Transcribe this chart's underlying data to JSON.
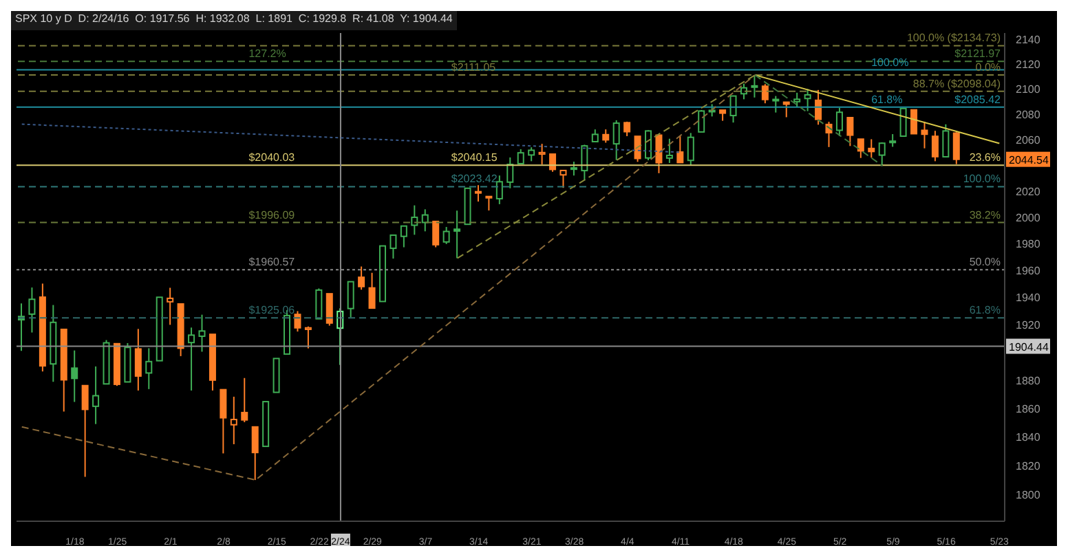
{
  "chart_data": {
    "type": "candlestick",
    "title": "SPX 10 y D  D: 2/24/16  O: 1917.56  H: 1932.08  L: 1891  C: 1929.8  R: 41.08  Y: 1904.44",
    "categories": [
      null,
      null,
      null,
      null,
      null,
      "1/18",
      null,
      null,
      null,
      "1/25",
      null,
      null,
      null,
      null,
      "2/1",
      null,
      null,
      null,
      null,
      "2/8",
      null,
      null,
      null,
      null,
      "2/15",
      null,
      null,
      null,
      "2/22",
      null,
      "2/24",
      null,
      null,
      "2/29",
      null,
      null,
      null,
      null,
      "3/7",
      null,
      null,
      null,
      null,
      "3/14",
      null,
      null,
      null,
      null,
      "3/21",
      null,
      null,
      null,
      "3/28",
      null,
      null,
      null,
      null,
      "4/4",
      null,
      null,
      null,
      null,
      "4/11",
      null,
      null,
      null,
      null,
      "4/18",
      null,
      null,
      null,
      null,
      "4/25",
      null,
      null,
      null,
      null,
      "5/2",
      null,
      null,
      null,
      null,
      "5/9",
      null,
      null,
      null,
      null,
      "5/16",
      null,
      null,
      null,
      null,
      "5/23"
    ],
    "ohlc": [
      [
        1926.1,
        1935.6,
        1901.1,
        1923.7
      ],
      [
        1927.8,
        1947.4,
        1914.4,
        1938.7
      ],
      [
        1940.3,
        1950.3,
        1886.3,
        1890.3
      ],
      [
        1891.7,
        1934.5,
        1878.9,
        1921.8
      ],
      [
        1916.7,
        1916.7,
        1857.8,
        1880.3
      ],
      [
        1888.7,
        1901.4,
        1864.6,
        1881.3
      ],
      [
        1876.2,
        1876.2,
        1812.3,
        1859.3
      ],
      [
        1861.5,
        1889.9,
        1849,
        1869
      ],
      [
        1877.4,
        1908.9,
        1877.4,
        1906.9
      ],
      [
        1906.3,
        1906.3,
        1876,
        1877.1
      ],
      [
        1878.8,
        1906.7,
        1878.8,
        1903.6
      ],
      [
        1902.5,
        1917,
        1872.7,
        1883
      ],
      [
        1885.2,
        1903,
        1873.7,
        1893.4
      ],
      [
        1894,
        1940.2,
        1894,
        1940.2
      ],
      [
        1936.9,
        1947.2,
        1920,
        1939.4
      ],
      [
        1935.3,
        1935.3,
        1897.3,
        1903
      ],
      [
        1907.1,
        1918,
        1872.7,
        1912.5
      ],
      [
        1911.7,
        1927.4,
        1900.5,
        1915.5
      ],
      [
        1913.1,
        1913.1,
        1872.7,
        1880.1
      ],
      [
        1873.3,
        1873.3,
        1828.5,
        1853.4
      ],
      [
        1848.5,
        1868.3,
        1834.9,
        1852.2
      ],
      [
        1857.1,
        1881.6,
        1850.3,
        1851.9
      ],
      [
        1847,
        1847,
        1810.1,
        1829.1
      ],
      [
        1833.4,
        1864.8,
        1833.4,
        1864.8
      ],
      [
        1871.4,
        1895.8,
        1871.4,
        1895.6
      ],
      [
        1898.8,
        1930.7,
        1898.8,
        1926.8
      ],
      [
        1927.6,
        1930,
        1915.1,
        1917.8
      ],
      [
        1916.7,
        1918.8,
        1902.9,
        1917.8
      ],
      [
        1924.4,
        1946.7,
        1924.4,
        1945.5
      ],
      [
        1942.8,
        1942.8,
        1919.4,
        1921.3
      ],
      [
        1917.56,
        1932.08,
        1891,
        1929.8
      ],
      [
        1931.9,
        1951.8,
        1925.4,
        1951.7
      ],
      [
        1955,
        1963,
        1945.8,
        1948.1
      ],
      [
        1947.1,
        1958.3,
        1931.8,
        1932.2
      ],
      [
        1937.1,
        1978.4,
        1937.1,
        1978.4
      ],
      [
        1976.6,
        1986.5,
        1968.9,
        1986.5
      ],
      [
        1985.6,
        1993.7,
        1977.4,
        1993.4
      ],
      [
        1994,
        2009.1,
        1986.8,
        2000
      ],
      [
        1996.1,
        2006.1,
        1989.4,
        2001.8
      ],
      [
        1996.9,
        1996.9,
        1977.4,
        1979.3
      ],
      [
        1981.4,
        1992.7,
        1979.8,
        1989.3
      ],
      [
        1991,
        2005.1,
        1969.2,
        1989.6
      ],
      [
        1994.7,
        2022.4,
        1994.7,
        2022.2
      ],
      [
        2019.3,
        2024.6,
        2012,
        2019.6
      ],
      [
        2015.3,
        2015.9,
        2005.2,
        2015.9
      ],
      [
        2014.2,
        2032,
        2010,
        2027.2
      ],
      [
        2026.9,
        2046,
        2022.2,
        2040.6
      ],
      [
        2041.2,
        2052.4,
        2041.2,
        2049.6
      ],
      [
        2047.9,
        2053.9,
        2043.1,
        2051.6
      ],
      [
        2048.6,
        2056.6,
        2040.6,
        2049.8
      ],
      [
        2048.6,
        2048.6,
        2034.9,
        2036.7
      ],
      [
        2032.5,
        2036,
        2022.5,
        2035.9
      ],
      [
        2037.9,
        2042.7,
        2032,
        2037.1
      ],
      [
        2035.8,
        2055.9,
        2028.3,
        2055
      ],
      [
        2058.3,
        2067.9,
        2058.3,
        2064
      ],
      [
        2063.8,
        2067.9,
        2057.5,
        2059.7
      ],
      [
        2056.6,
        2075.1,
        2044,
        2072.8
      ],
      [
        2073.2,
        2074,
        2062.6,
        2066.1
      ],
      [
        2062.5,
        2062.5,
        2042.6,
        2045.2
      ],
      [
        2045.6,
        2067.3,
        2043.8,
        2066.7
      ],
      [
        2063.4,
        2063.4,
        2033.8,
        2041.9
      ],
      [
        2045.5,
        2060.6,
        2041.7,
        2047.6
      ],
      [
        2050.2,
        2062.9,
        2041.9,
        2042
      ],
      [
        2043.7,
        2065.1,
        2039.7,
        2061.7
      ],
      [
        2065.9,
        2083.2,
        2065.9,
        2082.4
      ],
      [
        2082.9,
        2087.8,
        2078.1,
        2082.8
      ],
      [
        2083.1,
        2083.2,
        2074.7,
        2080.7
      ],
      [
        2078.8,
        2094.7,
        2073.3,
        2094.3
      ],
      [
        2096.1,
        2104.1,
        2091.7,
        2100.8
      ],
      [
        2101.5,
        2111.1,
        2093.1,
        2102.4
      ],
      [
        2102.1,
        2103.8,
        2088.5,
        2091.5
      ],
      [
        2091.5,
        2094.3,
        2081.2,
        2091.6
      ],
      [
        2089.4,
        2089.4,
        2077.5,
        2087.8
      ],
      [
        2089.8,
        2096.9,
        2085.8,
        2091.7
      ],
      [
        2092.3,
        2099.9,
        2082.3,
        2095.2
      ],
      [
        2090.9,
        2099.1,
        2071.6,
        2075.8
      ],
      [
        2071.8,
        2073.9,
        2054.1,
        2065.3
      ],
      [
        2067.2,
        2084.9,
        2062.6,
        2081.4
      ],
      [
        2077.2,
        2077.2,
        2054.9,
        2063.4
      ],
      [
        2060.3,
        2060.3,
        2045.6,
        2051.1
      ],
      [
        2053,
        2060.2,
        2045.8,
        2050.6
      ],
      [
        2047.8,
        2057.7,
        2039.5,
        2057.1
      ],
      [
        2057.6,
        2064.2,
        2054.3,
        2058.7
      ],
      [
        2062.6,
        2084.9,
        2062.6,
        2084.4
      ],
      [
        2083.3,
        2083.3,
        2064.5,
        2064.5
      ],
      [
        2067.2,
        2074,
        2053.1,
        2064.1
      ],
      [
        2062.5,
        2066.8,
        2043.1,
        2046.6
      ],
      [
        2046.5,
        2071.9,
        2046.5,
        2066.7
      ],
      [
        2065,
        2065.7,
        2040.8,
        2044.54
      ],
      null,
      null,
      null,
      null
    ],
    "colors": [
      "#3fae55",
      "#3fae55",
      "#ff7f27",
      "#3fae55",
      "#ff7f27",
      "#3fae55",
      "#ff7f27",
      "#3fae55",
      "#3fae55",
      "#ff7f27",
      "#3fae55",
      "#ff7f27",
      "#3fae55",
      "#3fae55",
      "#ff7f27",
      "#ff7f27",
      "#3fae55",
      "#3fae55",
      "#ff7f27",
      "#ff7f27",
      "#ff7f27",
      "#ff7f27",
      "#ff7f27",
      "#3fae55",
      "#3fae55",
      "#3fae55",
      "#ff7f27",
      "#ff7f27",
      "#3fae55",
      "#ff7f27",
      "#6dff8f",
      "#3fae55",
      "#ff7f27",
      "#ff7f27",
      "#3fae55",
      "#3fae55",
      "#3fae55",
      "#3fae55",
      "#3fae55",
      "#ff7f27",
      "#3fae55",
      "#3fae55",
      "#3fae55",
      "#ff7f27",
      "#ff7f27",
      "#3fae55",
      "#3fae55",
      "#3fae55",
      "#3fae55",
      "#ff7f27",
      "#ff7f27",
      "#ff7f27",
      "#3fae55",
      "#3fae55",
      "#3fae55",
      "#ff7f27",
      "#3fae55",
      "#ff7f27",
      "#ff7f27",
      "#3fae55",
      "#ff7f27",
      "#3fae55",
      "#ff7f27",
      "#3fae55",
      "#3fae55",
      "#3fae55",
      "#ff7f27",
      "#3fae55",
      "#3fae55",
      "#3fae55",
      "#ff7f27",
      "#3fae55",
      "#ff7f27",
      "#3fae55",
      "#3fae55",
      "#ff7f27",
      "#ff7f27",
      "#3fae55",
      "#ff7f27",
      "#ff7f27",
      "#ff7f27",
      "#3fae55",
      "#3fae55",
      "#3fae55",
      "#ff7f27",
      "#ff7f27",
      "#ff7f27",
      "#3fae55",
      "#ff7f27",
      null,
      null,
      null,
      null
    ],
    "series": [
      {
        "type": "line",
        "color": "#d8c84a",
        "line_style": "solid",
        "values": [
          null,
          null,
          null,
          null,
          null,
          null,
          null,
          null,
          null,
          null,
          null,
          null,
          null,
          null,
          null,
          null,
          null,
          null,
          null,
          null,
          null,
          null,
          null,
          null,
          null,
          null,
          null,
          null,
          null,
          null,
          null,
          null,
          null,
          null,
          null,
          null,
          null,
          null,
          null,
          null,
          null,
          null,
          null,
          null,
          null,
          null,
          null,
          null,
          null,
          null,
          null,
          null,
          null,
          null,
          null,
          null,
          null,
          null,
          null,
          null,
          null,
          null,
          null,
          null,
          null,
          null,
          null,
          null,
          null,
          2111.05,
          null,
          null,
          null,
          null,
          null,
          null,
          null,
          null,
          null,
          null,
          null,
          null,
          null,
          null,
          null,
          null,
          null,
          null,
          null,
          null,
          null,
          null,
          2057
        ]
      },
      {
        "type": "line",
        "color": "#8a6a3a",
        "line_style": "dashed",
        "values": [
          1847,
          null,
          null,
          null,
          null,
          null,
          null,
          null,
          null,
          null,
          null,
          null,
          null,
          null,
          null,
          null,
          null,
          null,
          null,
          null,
          null,
          null,
          1810.1,
          null,
          null,
          null,
          null,
          null,
          null,
          null,
          null,
          null,
          null,
          null,
          null,
          null,
          null,
          null,
          null,
          null,
          null,
          null,
          null,
          null,
          null,
          null,
          null,
          null,
          null,
          null,
          null,
          null,
          null,
          null,
          null,
          null,
          null,
          null,
          null,
          null,
          null,
          null,
          null,
          null,
          null,
          null,
          null,
          null,
          null,
          2111.05,
          null,
          null,
          null,
          null,
          null,
          null,
          null,
          null,
          null,
          null,
          null,
          null,
          null,
          null,
          null,
          null,
          null,
          null,
          null,
          null,
          null,
          null,
          null
        ]
      },
      {
        "type": "line",
        "color": "#8a8a3a",
        "line_style": "dashed",
        "values": [
          null,
          null,
          null,
          null,
          null,
          null,
          null,
          null,
          null,
          null,
          null,
          null,
          null,
          null,
          null,
          null,
          null,
          null,
          null,
          null,
          null,
          null,
          null,
          null,
          null,
          null,
          null,
          null,
          null,
          null,
          null,
          null,
          null,
          null,
          null,
          null,
          null,
          null,
          null,
          null,
          null,
          1969.2,
          null,
          null,
          null,
          null,
          null,
          null,
          null,
          null,
          null,
          null,
          null,
          null,
          null,
          null,
          null,
          null,
          null,
          null,
          null,
          null,
          null,
          null,
          null,
          null,
          null,
          null,
          null,
          2111.05,
          null,
          null,
          null,
          null,
          null,
          null,
          null,
          null,
          null,
          null,
          null,
          null,
          null,
          null,
          null,
          null,
          null,
          null,
          null,
          null,
          null,
          null,
          null
        ]
      },
      {
        "type": "line",
        "color": "#3f7a3f",
        "line_style": "dashed",
        "values": [
          null,
          null,
          null,
          null,
          null,
          null,
          null,
          null,
          null,
          null,
          null,
          null,
          null,
          null,
          null,
          null,
          null,
          null,
          null,
          null,
          null,
          null,
          null,
          null,
          null,
          null,
          null,
          null,
          null,
          null,
          null,
          null,
          null,
          null,
          null,
          null,
          null,
          null,
          null,
          null,
          null,
          null,
          null,
          null,
          null,
          null,
          null,
          null,
          null,
          null,
          null,
          null,
          null,
          null,
          null,
          null,
          null,
          null,
          null,
          null,
          null,
          null,
          null,
          null,
          null,
          null,
          null,
          null,
          null,
          2111.05,
          null,
          null,
          null,
          null,
          null,
          null,
          null,
          null,
          null,
          null,
          null,
          2039.5,
          null,
          null,
          null,
          null,
          null,
          null,
          null,
          null,
          null,
          null,
          null
        ]
      },
      {
        "type": "line",
        "color": "#3a5a8a",
        "line_style": "dotted",
        "values": [
          2072,
          null,
          null,
          null,
          null,
          null,
          null,
          null,
          null,
          null,
          null,
          null,
          null,
          null,
          null,
          null,
          null,
          null,
          null,
          null,
          null,
          null,
          null,
          null,
          null,
          null,
          null,
          null,
          null,
          null,
          null,
          null,
          null,
          null,
          null,
          null,
          null,
          null,
          null,
          null,
          null,
          null,
          null,
          null,
          null,
          null,
          null,
          null,
          null,
          null,
          null,
          null,
          null,
          null,
          null,
          null,
          null,
          null,
          null,
          null,
          null,
          null,
          2050,
          null,
          null,
          null,
          null,
          null,
          null,
          null,
          null,
          null,
          null,
          null,
          null,
          null,
          null,
          null,
          null,
          null,
          null,
          null,
          null,
          null,
          null,
          null,
          null,
          null,
          null,
          null,
          null,
          null,
          null
        ]
      }
    ],
    "log": true,
    "ylim": [
      1782,
      2145
    ],
    "yticks": [
      1800,
      1820,
      1840,
      1860,
      1880,
      1920,
      1940,
      1960,
      1980,
      2000,
      2020,
      2060,
      2080,
      2100,
      2120,
      2140
    ],
    "ref_lines": [
      {
        "axis": "y",
        "value": 2134.73,
        "label": "100.0% ($2134.73)",
        "color": "#7a7a3a",
        "line_style": "dashed"
      },
      {
        "axis": "y",
        "value": 2121.97,
        "label": "$2121.97",
        "color": "#4a7a3a",
        "line_style": "dashed"
      },
      {
        "axis": "y",
        "value": 2115.24,
        "color": "#1f8fa0",
        "line_style": "solid"
      },
      {
        "axis": "y",
        "value": 2111.05,
        "label": "$2111.05",
        "color": "#7a7a3a",
        "line_style": "dashed"
      },
      {
        "axis": "y",
        "value": 2098.04,
        "label": "88.7% ($2098.04)",
        "color": "#7a7a3a",
        "line_style": "dashed"
      },
      {
        "axis": "y",
        "value": 2085.42,
        "label": "$2085.42",
        "color": "#1f8fa0",
        "line_style": "solid"
      },
      {
        "axis": "y",
        "value": 2040.03,
        "label": "$2040.03",
        "color": "#d8c870",
        "line_style": "solid"
      },
      {
        "axis": "y",
        "value": 2023.42,
        "label": "$2023.42",
        "color": "#2f7a7a",
        "line_style": "dashed"
      },
      {
        "axis": "y",
        "value": 1996.09,
        "label": "$1996.09",
        "color": "#6a7a3a",
        "line_style": "dashed"
      },
      {
        "axis": "y",
        "value": 1960.57,
        "label": "$1960.57",
        "color": "#8a8a8a",
        "line_style": "dotted"
      },
      {
        "axis": "y",
        "value": 1925.06,
        "label": "$1925.06",
        "color": "#2f6a6a",
        "line_style": "dashed"
      },
      {
        "axis": "y",
        "value": 1904.44,
        "label": "1904.44",
        "color": "#8a8a8a",
        "line_style": "solid"
      },
      {
        "axis": "x",
        "value": "2/24",
        "color": "#8a8a8a",
        "line_style": "solid"
      }
    ],
    "annotations": [
      {
        "text": "127.2%",
        "y": 2121.97
      },
      {
        "text": "100.0%",
        "y": 2115.24
      },
      {
        "text": "0.0%",
        "y": 2111.05
      },
      {
        "text": "61.8%",
        "y": 2085.42
      },
      {
        "text": "$2040.15",
        "y": 2040.03
      },
      {
        "text": "23.6%",
        "y": 2040.03
      },
      {
        "text": "100.0%",
        "y": 2023.42
      },
      {
        "text": "38.2%",
        "y": 1996.09
      },
      {
        "text": "50.0%",
        "y": 1960.57
      },
      {
        "text": "61.8%",
        "y": 1925.06
      },
      {
        "text": "2044.54",
        "y": 2044.54
      }
    ]
  }
}
